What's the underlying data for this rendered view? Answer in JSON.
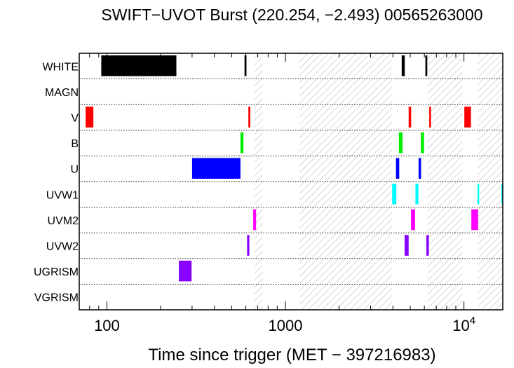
{
  "chart_data": {
    "type": "bar",
    "title": "SWIFT−UVOT Burst (220.254, −2.493) 00565263000",
    "xlabel": "Time since trigger (MET − 397216983)",
    "x_scale": "log",
    "xlim": [
      70,
      16500
    ],
    "x_ticks": [
      {
        "value": 100,
        "base": "100",
        "exp": ""
      },
      {
        "value": 1000,
        "base": "1000",
        "exp": ""
      },
      {
        "value": 10000,
        "base": "10",
        "exp": "4"
      }
    ],
    "rows": [
      "WHITE",
      "MAGN",
      "V",
      "B",
      "U",
      "UVW1",
      "UVM2",
      "UVW2",
      "UGRISM",
      "VGRISM"
    ],
    "gaps": [
      [
        670,
        745
      ],
      [
        1200,
        3950
      ],
      [
        6250,
        9800
      ],
      [
        12000,
        16500
      ]
    ],
    "exposures": [
      {
        "filter": "WHITE",
        "color": "#000000",
        "intervals": [
          [
            93,
            245
          ],
          [
            590,
            605
          ],
          [
            4480,
            4660
          ],
          [
            6080,
            6230
          ]
        ]
      },
      {
        "filter": "MAGN",
        "color": "#000000",
        "intervals": []
      },
      {
        "filter": "V",
        "color": "#ff0000",
        "intervals": [
          [
            76,
            84
          ],
          [
            620,
            636
          ],
          [
            4900,
            5060
          ],
          [
            6390,
            6460
          ],
          [
            10050,
            10950
          ]
        ]
      },
      {
        "filter": "B",
        "color": "#00ee00",
        "intervals": [
          [
            560,
            582
          ],
          [
            4320,
            4530
          ],
          [
            5740,
            5980
          ]
        ]
      },
      {
        "filter": "U",
        "color": "#0000ff",
        "intervals": [
          [
            300,
            560
          ],
          [
            4160,
            4340
          ],
          [
            5570,
            5750
          ]
        ]
      },
      {
        "filter": "UVW1",
        "color": "#00ffff",
        "intervals": [
          [
            3960,
            4180
          ],
          [
            5350,
            5560
          ],
          [
            11900,
            12100
          ],
          [
            16200,
            16500
          ]
        ]
      },
      {
        "filter": "UVM2",
        "color": "#ff00ff",
        "intervals": [
          [
            660,
            685
          ],
          [
            5050,
            5320
          ],
          [
            11000,
            12000
          ]
        ]
      },
      {
        "filter": "UVW2",
        "color": "#8800ff",
        "intervals": [
          [
            610,
            628
          ],
          [
            4650,
            4900
          ],
          [
            6160,
            6360
          ]
        ]
      },
      {
        "filter": "UGRISM",
        "color": "#8800ff",
        "intervals": [
          [
            253,
            298
          ]
        ]
      },
      {
        "filter": "VGRISM",
        "color": "#000000",
        "intervals": []
      }
    ]
  }
}
